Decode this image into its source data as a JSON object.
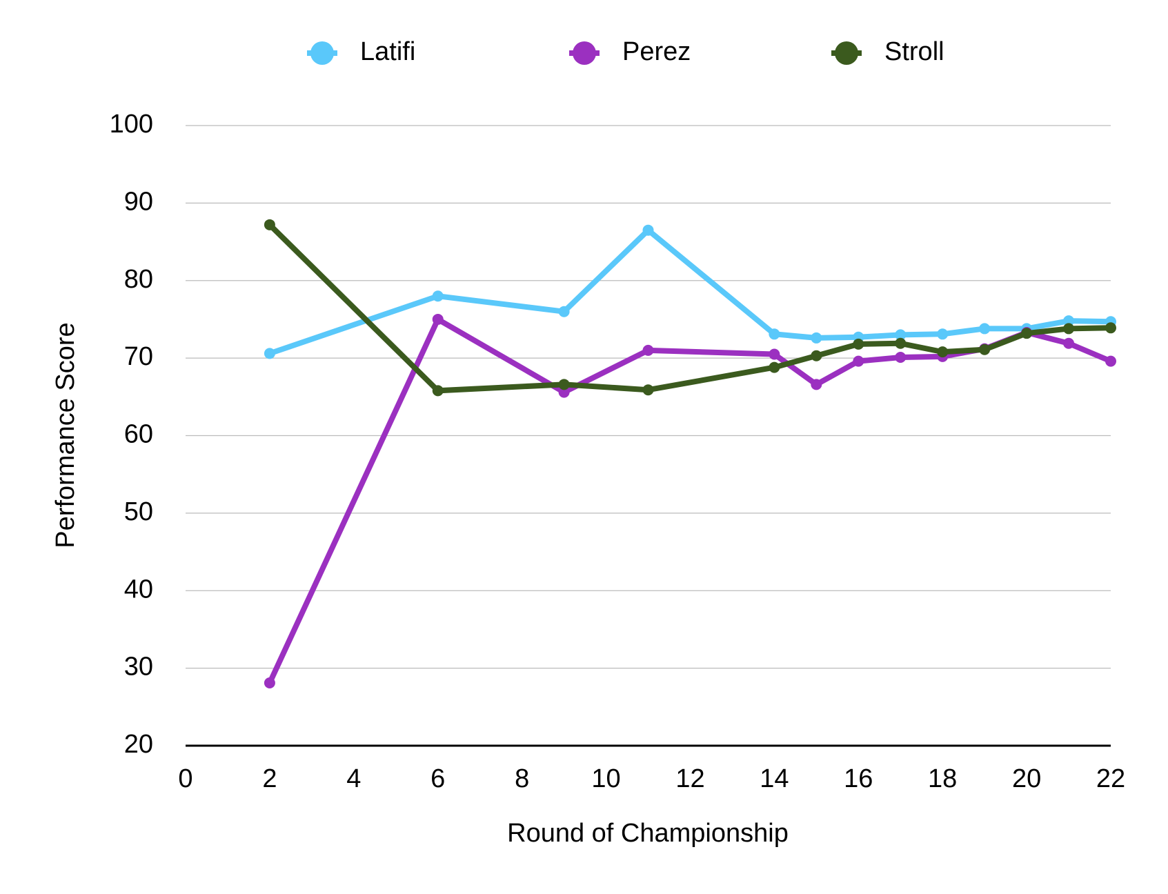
{
  "chart_data": {
    "type": "line",
    "x_label": "Round of Championship",
    "y_label": "Performance Score",
    "x": [
      2,
      6,
      9,
      11,
      14,
      15,
      16,
      17,
      18,
      19,
      20,
      21,
      22
    ],
    "series": [
      {
        "name": "Latifi",
        "color": "#5ac8fa",
        "values": [
          70.6,
          78,
          76,
          86.5,
          73.1,
          72.6,
          72.7,
          73,
          73.1,
          73.8,
          73.8,
          74.8,
          74.7
        ]
      },
      {
        "name": "Perez",
        "color": "#9b30c0",
        "values": [
          28.1,
          75,
          65.6,
          71,
          70.5,
          66.6,
          69.6,
          70.1,
          70.2,
          71.2,
          73.3,
          71.9,
          69.6
        ]
      },
      {
        "name": "Stroll",
        "color": "#3b5a1e",
        "values": [
          87.2,
          65.8,
          66.6,
          65.9,
          68.8,
          70.3,
          71.8,
          71.9,
          70.8,
          71.1,
          73.2,
          73.8,
          73.9
        ]
      }
    ],
    "xlim": [
      0,
      22
    ],
    "xticks": [
      0,
      2,
      4,
      6,
      8,
      10,
      12,
      14,
      16,
      18,
      20,
      22
    ],
    "ylim": [
      20,
      100
    ],
    "yticks": [
      20,
      30,
      40,
      50,
      60,
      70,
      80,
      90,
      100
    ],
    "grid": true,
    "legend": "top"
  }
}
